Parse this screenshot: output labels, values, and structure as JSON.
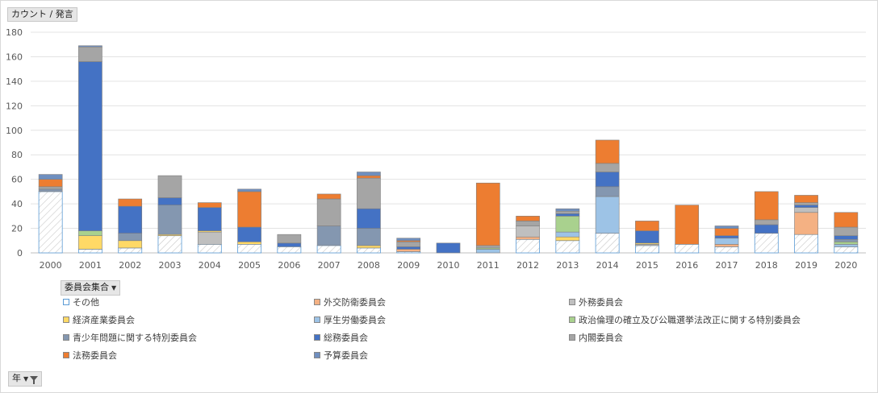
{
  "fields": {
    "value_field": "カウント / 発言",
    "legend_field": "委員会集合",
    "axis_field": "年"
  },
  "chart_data": {
    "type": "bar",
    "stacked": true,
    "ylim": [
      0,
      180
    ],
    "yticks": [
      "0",
      "20",
      "40",
      "60",
      "80",
      "100",
      "120",
      "140",
      "160",
      "180"
    ],
    "grid": true,
    "legend_position": "bottom",
    "categories": [
      "2000",
      "2001",
      "2002",
      "2003",
      "2004",
      "2005",
      "2006",
      "2007",
      "2008",
      "2009",
      "2010",
      "2011",
      "2012",
      "2013",
      "2014",
      "2015",
      "2016",
      "2017",
      "2018",
      "2019",
      "2020"
    ],
    "series": [
      {
        "name": "その他",
        "color": "#ffffff",
        "pattern": true,
        "values": [
          50,
          3,
          4,
          14,
          7,
          7,
          5,
          6,
          4,
          1,
          0,
          0,
          11,
          10,
          16,
          6,
          7,
          5,
          16,
          15,
          5
        ]
      },
      {
        "name": "外交防衛委員会",
        "color": "#f4b183",
        "values": [
          0,
          0,
          0,
          0,
          0,
          0,
          0,
          0,
          0,
          2,
          0,
          0,
          2,
          0,
          0,
          0,
          0,
          2,
          0,
          18,
          0
        ]
      },
      {
        "name": "外務委員会",
        "color": "#bfbfbf",
        "values": [
          0,
          0,
          0,
          0,
          10,
          0,
          0,
          0,
          0,
          0,
          0,
          0,
          9,
          0,
          0,
          1,
          0,
          0,
          0,
          4,
          0
        ]
      },
      {
        "name": "経済産業委員会",
        "color": "#ffd966",
        "values": [
          0,
          11,
          6,
          1,
          1,
          2,
          0,
          0,
          2,
          0,
          0,
          0,
          0,
          3,
          0,
          1,
          0,
          0,
          0,
          0,
          0
        ]
      },
      {
        "name": "厚生労働委員会",
        "color": "#9dc3e6",
        "values": [
          0,
          0,
          0,
          0,
          0,
          0,
          0,
          0,
          0,
          0,
          0,
          3,
          0,
          4,
          30,
          0,
          0,
          5,
          0,
          0,
          2
        ]
      },
      {
        "name": "政治倫理の確立及び公職選挙法改正に関する特別委員会",
        "color": "#a9d18e",
        "values": [
          0,
          4,
          0,
          0,
          0,
          0,
          0,
          0,
          0,
          0,
          0,
          1,
          0,
          13,
          0,
          0,
          0,
          0,
          0,
          0,
          2
        ]
      },
      {
        "name": "青少年問題に関する特別委員会",
        "color": "#8497b0",
        "values": [
          2,
          0,
          6,
          24,
          0,
          0,
          0,
          16,
          14,
          0,
          0,
          0,
          0,
          0,
          8,
          0,
          0,
          0,
          0,
          0,
          2
        ]
      },
      {
        "name": "総務委員会",
        "color": "#4472c4",
        "values": [
          0,
          138,
          22,
          6,
          19,
          12,
          3,
          0,
          16,
          2,
          8,
          0,
          0,
          2,
          12,
          10,
          0,
          2,
          7,
          2,
          3
        ]
      },
      {
        "name": "内閣委員会",
        "color": "#a5a5a5",
        "values": [
          2,
          12,
          0,
          18,
          0,
          0,
          7,
          22,
          25,
          4,
          0,
          2,
          4,
          2,
          7,
          0,
          0,
          0,
          4,
          2,
          7
        ]
      },
      {
        "name": "法務委員会",
        "color": "#ed7d31",
        "values": [
          6,
          0,
          6,
          0,
          4,
          29,
          0,
          4,
          2,
          1,
          0,
          51,
          4,
          0,
          19,
          8,
          32,
          6,
          23,
          6,
          12
        ]
      },
      {
        "name": "予算委員会",
        "color": "#6f8fbf",
        "values": [
          4,
          1,
          0,
          0,
          0,
          2,
          0,
          0,
          3,
          2,
          0,
          0,
          0,
          2,
          0,
          0,
          0,
          2,
          0,
          0,
          0
        ]
      }
    ]
  },
  "legend_layout": [
    {
      "col": 0,
      "row": 0
    },
    {
      "col": 1,
      "row": 0
    },
    {
      "col": 2,
      "row": 0
    },
    {
      "col": 0,
      "row": 1
    },
    {
      "col": 1,
      "row": 1
    },
    {
      "col": 2,
      "row": 1
    },
    {
      "col": 0,
      "row": 2
    },
    {
      "col": 1,
      "row": 2
    },
    {
      "col": 2,
      "row": 2
    },
    {
      "col": 0,
      "row": 3
    },
    {
      "col": 1,
      "row": 3
    }
  ]
}
